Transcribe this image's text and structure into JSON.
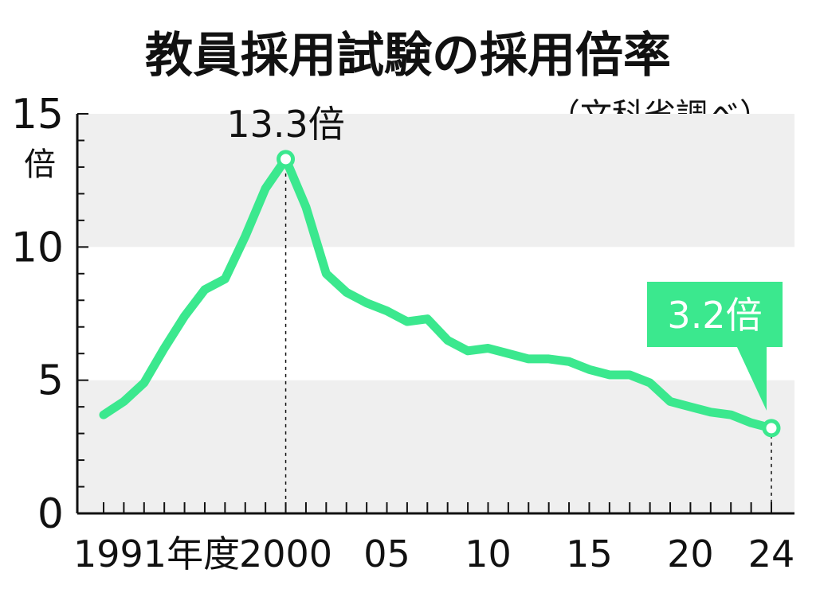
{
  "chart_data": {
    "type": "line",
    "title": "教員採用試験の採用倍率",
    "source": "（文科省調べ）",
    "y_unit": "倍",
    "ylim": [
      0,
      15
    ],
    "y_ticks": [
      "0",
      "5",
      "10",
      "15"
    ],
    "x": [
      1991,
      1992,
      1993,
      1994,
      1995,
      1996,
      1997,
      1998,
      1999,
      2000,
      2001,
      2002,
      2003,
      2004,
      2005,
      2006,
      2007,
      2008,
      2009,
      2010,
      2011,
      2012,
      2013,
      2014,
      2015,
      2016,
      2017,
      2018,
      2019,
      2020,
      2021,
      2022,
      2023,
      2024
    ],
    "x_ticks": [
      {
        "x": 1991,
        "label": "1991年度"
      },
      {
        "x": 2000,
        "label": "2000"
      },
      {
        "x": 2005,
        "label": "05"
      },
      {
        "x": 2010,
        "label": "10"
      },
      {
        "x": 2015,
        "label": "15"
      },
      {
        "x": 2020,
        "label": "20"
      },
      {
        "x": 2024,
        "label": "24"
      }
    ],
    "series": [
      {
        "values": [
          3.7,
          4.2,
          4.9,
          6.2,
          7.4,
          8.4,
          8.8,
          10.4,
          12.2,
          13.3,
          11.5,
          9.0,
          8.3,
          7.9,
          7.6,
          7.2,
          7.3,
          6.5,
          6.1,
          6.2,
          6.0,
          5.8,
          5.8,
          5.7,
          5.4,
          5.2,
          5.2,
          4.9,
          4.2,
          4.0,
          3.8,
          3.7,
          3.4,
          3.2
        ],
        "color": "#3be88e"
      }
    ],
    "annotations": [
      {
        "x": 2000,
        "y": 13.3,
        "text": "13.3倍",
        "style": "plain"
      },
      {
        "x": 2024,
        "y": 3.2,
        "text": "3.2倍",
        "style": "callout"
      }
    ],
    "background_bands": true
  }
}
